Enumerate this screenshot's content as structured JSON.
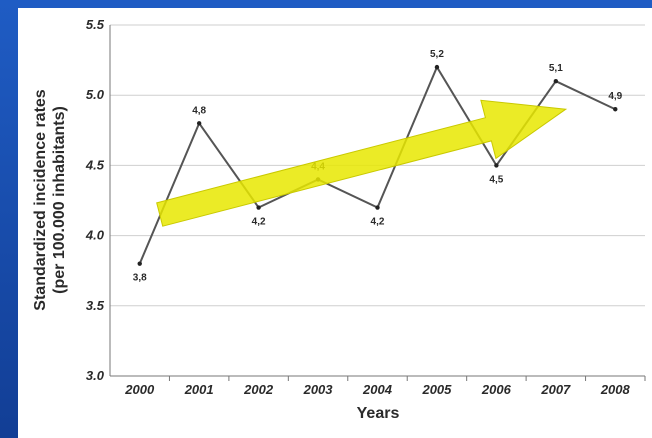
{
  "chart_data": {
    "type": "line",
    "xlabel": "Years",
    "ylabel": "Standardized incidence rates",
    "ylabel_sub": "(per 100.000 inhabitants)",
    "x": [
      "2000",
      "2001",
      "2002",
      "2003",
      "2004",
      "2005",
      "2006",
      "2007",
      "2008"
    ],
    "ylim": [
      3.0,
      5.5
    ],
    "yticks": [
      "3.0",
      "3.5",
      "4.0",
      "4.5",
      "5.0",
      "5.5"
    ],
    "grid": true,
    "series": [
      {
        "values": [
          3.8,
          4.8,
          4.2,
          4.4,
          4.2,
          5.2,
          4.5,
          5.1,
          4.9
        ],
        "labels": [
          "3,8",
          "4,8",
          "4,2",
          "4,4",
          "4,2",
          "5,2",
          "4,5",
          "5,1",
          "4,9"
        ],
        "color": "#555555"
      }
    ],
    "annotations": [
      {
        "kind": "trend-arrow",
        "color": "#e8e800",
        "from": [
          "2000",
          4.15
        ],
        "to": [
          "2007",
          4.9
        ]
      }
    ]
  }
}
